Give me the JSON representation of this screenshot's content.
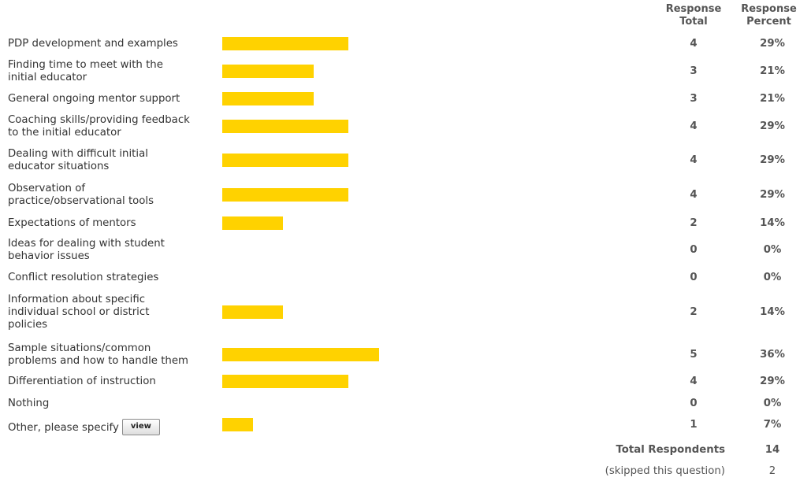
{
  "chart_data": {
    "type": "bar",
    "orientation": "horizontal",
    "columns": {
      "total_line1": "Response",
      "total_line2": "Total",
      "percent_line1": "Response",
      "percent_line2": "Percent"
    },
    "rows": [
      {
        "label_lines": [
          "PDP development and examples"
        ],
        "total": "4",
        "percent": "29%",
        "value": 29
      },
      {
        "label_lines": [
          "Finding time to meet with the",
          "initial educator"
        ],
        "total": "3",
        "percent": "21%",
        "value": 21
      },
      {
        "label_lines": [
          "General ongoing mentor support"
        ],
        "total": "3",
        "percent": "21%",
        "value": 21
      },
      {
        "label_lines": [
          "Coaching skills/providing feedback",
          "to the initial educator"
        ],
        "total": "4",
        "percent": "29%",
        "value": 29
      },
      {
        "label_lines": [
          "Dealing with difficult initial",
          "educator situations"
        ],
        "total": "4",
        "percent": "29%",
        "value": 29
      },
      {
        "label_lines": [
          "Observation of",
          "practice/observational tools"
        ],
        "total": "4",
        "percent": "29%",
        "value": 29
      },
      {
        "label_lines": [
          "Expectations of mentors"
        ],
        "total": "2",
        "percent": "14%",
        "value": 14
      },
      {
        "label_lines": [
          "Ideas for dealing with student",
          "behavior issues"
        ],
        "total": "0",
        "percent": "0%",
        "value": 0
      },
      {
        "label_lines": [
          "Conflict resolution strategies"
        ],
        "total": "0",
        "percent": "0%",
        "value": 0
      },
      {
        "label_lines": [
          "Information about specific",
          "individual school or district",
          "policies"
        ],
        "total": "2",
        "percent": "14%",
        "value": 14
      },
      {
        "label_lines": [
          "Sample situations/common",
          "problems and how to handle them"
        ],
        "total": "5",
        "percent": "36%",
        "value": 36
      },
      {
        "label_lines": [
          "Differentiation of instruction"
        ],
        "total": "4",
        "percent": "29%",
        "value": 29
      },
      {
        "label_lines": [
          "Nothing"
        ],
        "total": "0",
        "percent": "0%",
        "value": 0
      },
      {
        "label_lines": [
          "Other, please specify"
        ],
        "total": "1",
        "percent": "7%",
        "value": 7,
        "button": "view"
      }
    ],
    "bar_color": "#FFD200",
    "footer": {
      "respondents_label": "Total Respondents",
      "respondents_value": "14",
      "skipped_label": "(skipped this question)",
      "skipped_value": "2"
    }
  }
}
